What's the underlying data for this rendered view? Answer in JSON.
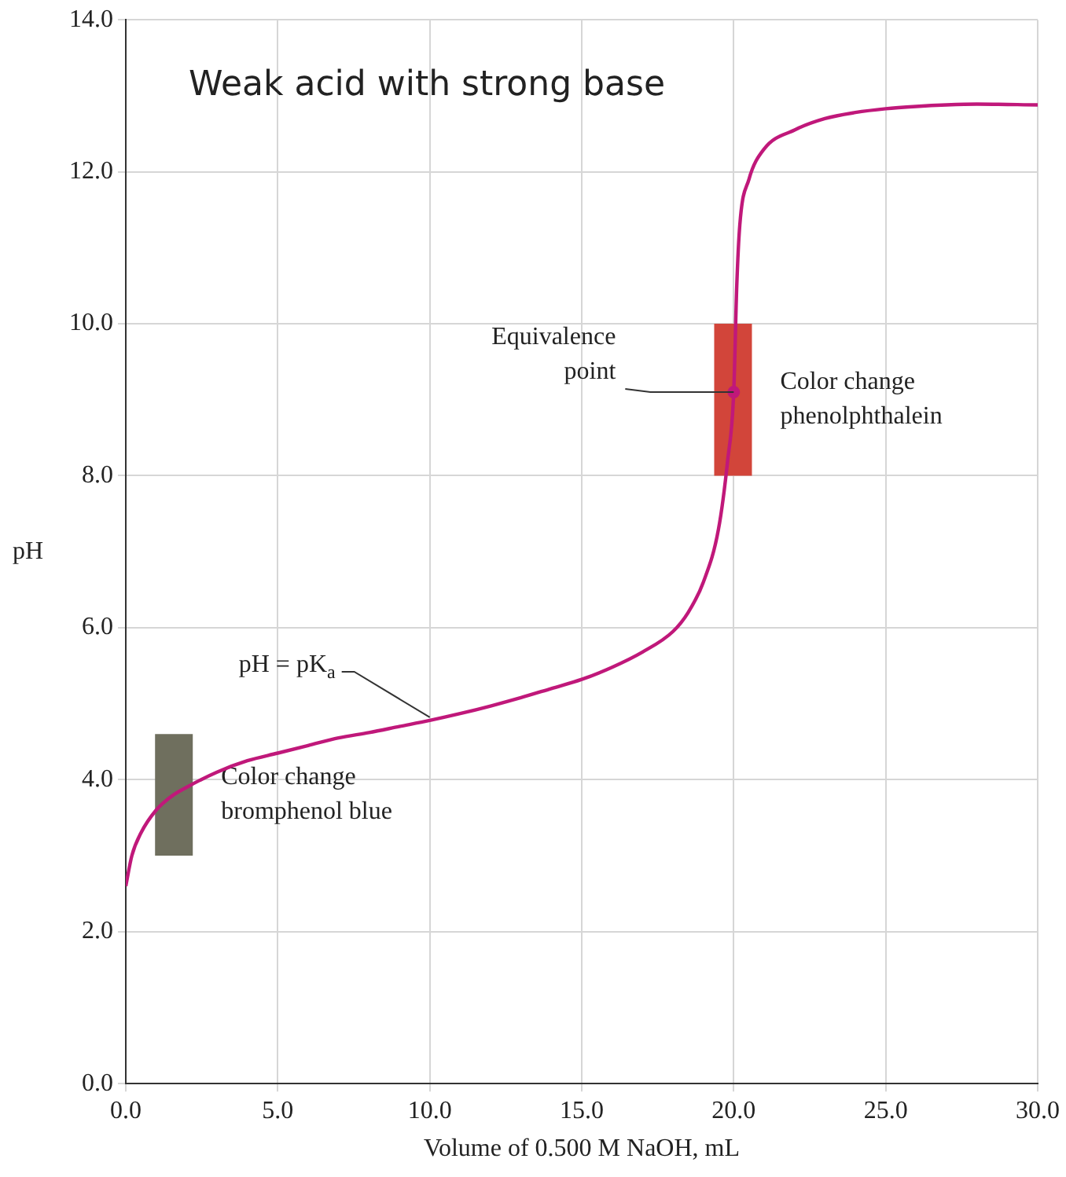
{
  "chart_data": {
    "type": "line",
    "title": "Weak acid with strong base",
    "xlabel": "Volume of 0.500 M NaOH, mL",
    "ylabel": "pH",
    "x": [
      0,
      0.2,
      0.5,
      1,
      1.5,
      2,
      3,
      4,
      5,
      6,
      7,
      8,
      9,
      10,
      11,
      12,
      13,
      14,
      15,
      16,
      17,
      18,
      18.5,
      19,
      19.5,
      19.8,
      20,
      20.1,
      20.2,
      20.5,
      21,
      22,
      23,
      24,
      25,
      26,
      27,
      28,
      30
    ],
    "series": [
      {
        "color": "#c0187a",
        "values": [
          2.6,
          3.0,
          3.3,
          3.6,
          3.78,
          3.9,
          4.1,
          4.25,
          4.35,
          4.45,
          4.55,
          4.62,
          4.7,
          4.78,
          4.87,
          4.97,
          5.08,
          5.2,
          5.32,
          5.48,
          5.68,
          5.95,
          6.2,
          6.6,
          7.3,
          8.2,
          9.1,
          10.5,
          11.3,
          11.9,
          12.3,
          12.55,
          12.7,
          12.78,
          12.83,
          12.86,
          12.88,
          12.89,
          12.88
        ]
      },
      {
        "type": "scatter",
        "color": "#c0187a",
        "marker": "circle",
        "x": [
          20
        ],
        "values": [
          9.1
        ]
      }
    ],
    "xlim": [
      0,
      30
    ],
    "xticks": [
      {
        "value": 0,
        "label": "0.0"
      },
      {
        "value": 5,
        "label": "5.0"
      },
      {
        "value": 10,
        "label": "10.0"
      },
      {
        "value": 15,
        "label": "15.0"
      },
      {
        "value": 20,
        "label": "20.0"
      },
      {
        "value": 25,
        "label": "25.0"
      },
      {
        "value": 30,
        "label": "30.0"
      }
    ],
    "ylim": [
      0,
      14
    ],
    "yticks": [
      {
        "value": 0,
        "label": "0.0"
      },
      {
        "value": 2,
        "label": "2.0"
      },
      {
        "value": 4,
        "label": "4.0"
      },
      {
        "value": 6,
        "label": "6.0"
      },
      {
        "value": 8,
        "label": "8.0"
      },
      {
        "value": 10,
        "label": "10.0"
      },
      {
        "value": 12,
        "label": "12.0"
      },
      {
        "value": 14,
        "label": "14.0"
      }
    ],
    "bands": [
      {
        "axis": "y",
        "from": 3.0,
        "to": 4.6,
        "label": "Color change\nbromphenol blue",
        "color": "#6f6f5e"
      },
      {
        "axis": "y",
        "from": 8.0,
        "to": 10.0,
        "label": "Color change\nphenolphthalein",
        "color": "#d2453a"
      }
    ],
    "annotations": [
      {
        "text": "Equivalence\npoint",
        "x": 20,
        "y": 9.1
      },
      {
        "text": "pH = pK$_{a}$",
        "x": 10,
        "y": 4.78
      }
    ],
    "grid": true,
    "legend": false,
    "line_style": "solid"
  }
}
